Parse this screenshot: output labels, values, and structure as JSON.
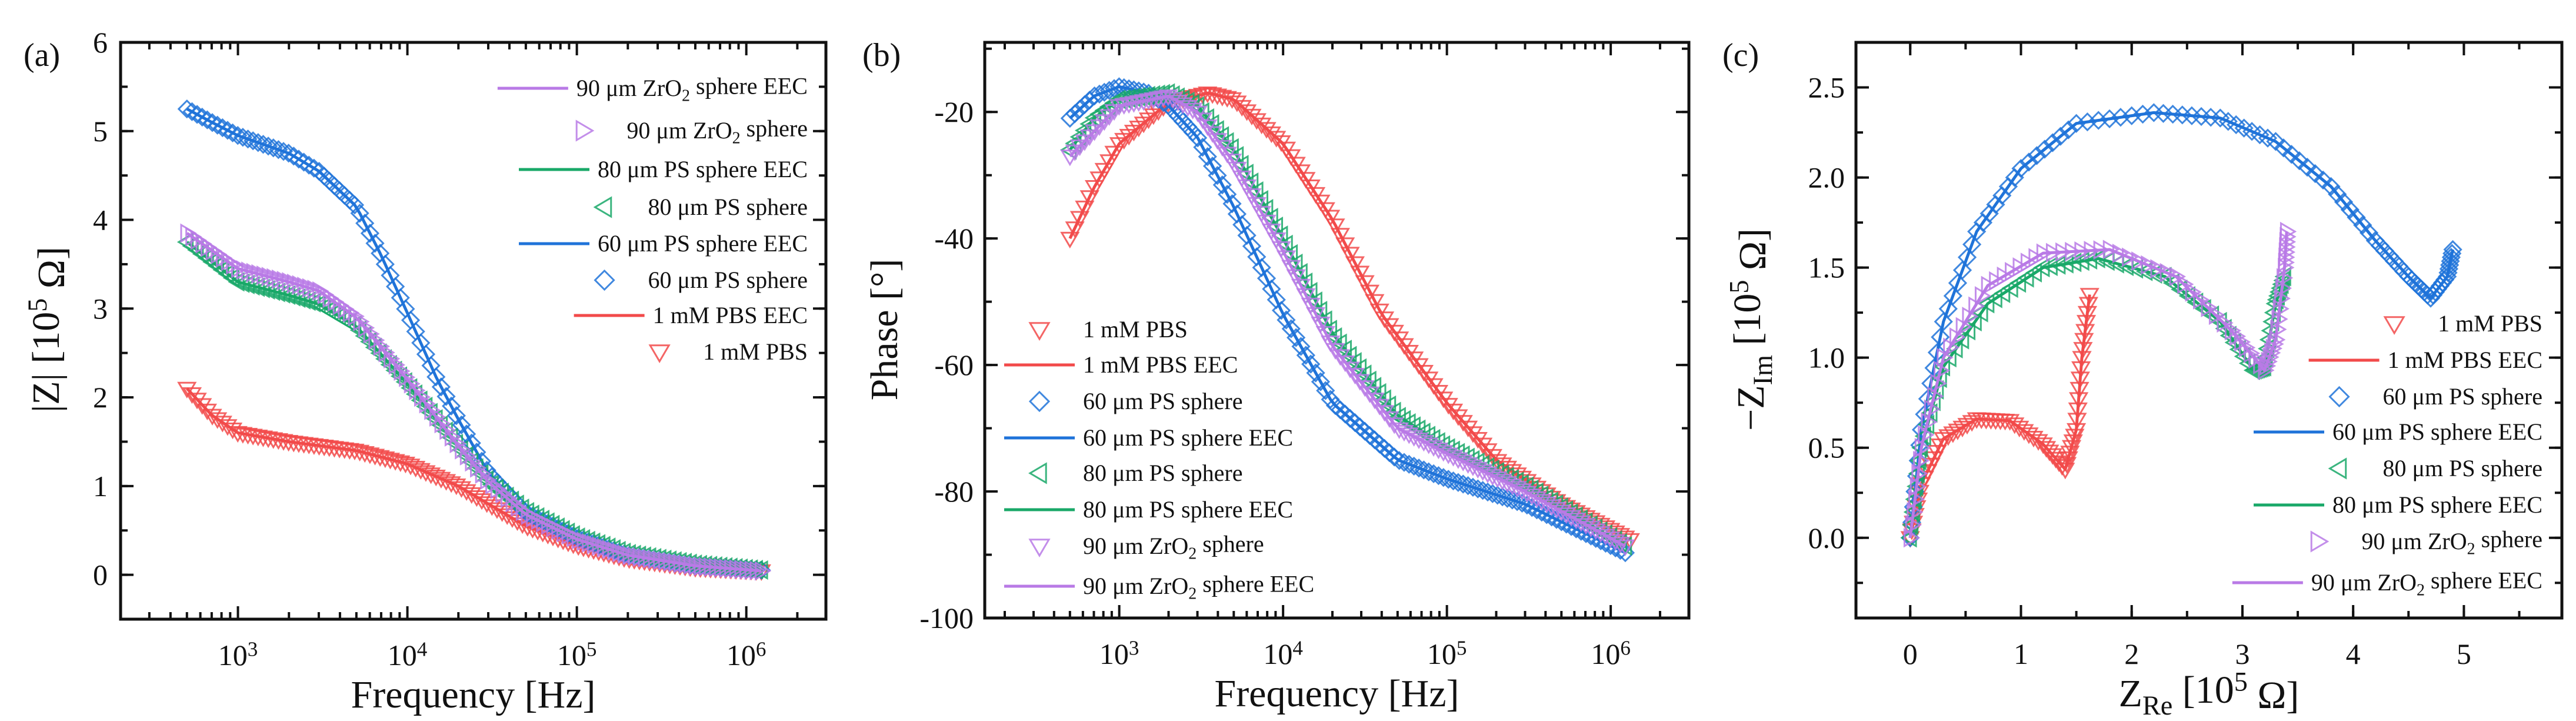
{
  "colors": {
    "pbs": "#f24a4a",
    "ps60": "#1f73d9",
    "ps80": "#19a868",
    "zro90": "#b97ae6"
  },
  "chart_data": [
    {
      "id": "a",
      "type": "line",
      "panel_label": "(a)",
      "xscale": "log",
      "xlim": [
        203,
        2950000
      ],
      "ylim": [
        -0.5,
        6
      ],
      "xlabel": [
        {
          "t": "Frequency [Hz]"
        }
      ],
      "ylabel": [
        {
          "t": "|Z| [10"
        },
        {
          "t": "5",
          "sup": true
        },
        {
          "t": " Ω]"
        }
      ],
      "xticks": [
        {
          "v": 1000,
          "base": "10",
          "exp": "3"
        },
        {
          "v": 10000,
          "base": "10",
          "exp": "4"
        },
        {
          "v": 100000,
          "base": "10",
          "exp": "5"
        },
        {
          "v": 1000000,
          "base": "10",
          "exp": "6"
        }
      ],
      "yticks": [
        {
          "v": 0,
          "label": "0"
        },
        {
          "v": 1,
          "label": "1"
        },
        {
          "v": 2,
          "label": "2"
        },
        {
          "v": 3,
          "label": "3"
        },
        {
          "v": 4,
          "label": "4"
        },
        {
          "v": 5,
          "label": "5"
        },
        {
          "v": 6,
          "label": "6"
        }
      ],
      "legend_placement": "top-right",
      "legend": [
        {
          "series": "zro90",
          "kind": "line",
          "label": [
            {
              "t": "90 μm ZrO"
            },
            {
              "t": "2",
              "sub": true
            },
            {
              "t": " sphere EEC"
            }
          ]
        },
        {
          "series": "zro90",
          "kind": "marker",
          "marker": "tri-right",
          "label": [
            {
              "t": "90 μm ZrO"
            },
            {
              "t": "2",
              "sub": true
            },
            {
              "t": " sphere"
            }
          ]
        },
        {
          "series": "ps80",
          "kind": "line",
          "label": [
            {
              "t": "80 μm PS sphere EEC"
            }
          ]
        },
        {
          "series": "ps80",
          "kind": "marker",
          "marker": "tri-left",
          "label": [
            {
              "t": "80 μm PS sphere"
            }
          ]
        },
        {
          "series": "ps60",
          "kind": "line",
          "label": [
            {
              "t": "60 μm PS sphere EEC"
            }
          ]
        },
        {
          "series": "ps60",
          "kind": "marker",
          "marker": "diamond",
          "label": [
            {
              "t": "60 μm PS sphere"
            }
          ]
        },
        {
          "series": "pbs",
          "kind": "line",
          "label": [
            {
              "t": "1 mM PBS EEC"
            }
          ]
        },
        {
          "series": "pbs",
          "kind": "marker",
          "marker": "tri-down",
          "label": [
            {
              "t": "1 mM PBS"
            }
          ]
        }
      ],
      "series": [
        {
          "key": "pbs",
          "marker": "tri-down",
          "x": [
            500,
            700,
            1000,
            2000,
            5000,
            10000,
            20000,
            30000,
            50000,
            100000,
            200000,
            500000,
            1300000
          ],
          "y": [
            2.1,
            1.8,
            1.6,
            1.5,
            1.4,
            1.25,
            1.0,
            0.8,
            0.55,
            0.33,
            0.18,
            0.08,
            0.04
          ]
        },
        {
          "key": "ps60",
          "marker": "diamond",
          "x": [
            500,
            700,
            1000,
            2000,
            3000,
            5000,
            7000,
            10000,
            15000,
            20000,
            30000,
            50000,
            100000,
            200000,
            500000,
            1300000
          ],
          "y": [
            5.25,
            5.1,
            4.95,
            4.75,
            4.55,
            4.15,
            3.6,
            2.95,
            2.2,
            1.75,
            1.15,
            0.7,
            0.42,
            0.22,
            0.1,
            0.05
          ]
        },
        {
          "key": "ps80",
          "marker": "tri-left",
          "x": [
            500,
            1000,
            2000,
            3000,
            5000,
            10000,
            20000,
            30000,
            50000,
            100000,
            200000,
            500000,
            1300000
          ],
          "y": [
            3.75,
            3.3,
            3.15,
            3.05,
            2.8,
            2.15,
            1.45,
            1.05,
            0.72,
            0.43,
            0.24,
            0.12,
            0.05
          ]
        },
        {
          "key": "zro90",
          "marker": "tri-right",
          "x": [
            500,
            1000,
            2000,
            3000,
            5000,
            10000,
            20000,
            30000,
            50000,
            100000,
            200000,
            500000,
            1300000
          ],
          "y": [
            3.85,
            3.45,
            3.3,
            3.2,
            2.9,
            2.2,
            1.45,
            1.05,
            0.68,
            0.4,
            0.22,
            0.1,
            0.04
          ]
        }
      ]
    },
    {
      "id": "b",
      "type": "line",
      "panel_label": "(b)",
      "xscale": "log",
      "xlim": [
        151,
        3000000
      ],
      "ylim": [
        -100,
        -9
      ],
      "xlabel": [
        {
          "t": "Frequency [Hz]"
        }
      ],
      "ylabel": [
        {
          "t": "Phase [°]"
        }
      ],
      "xticks": [
        {
          "v": 1000,
          "base": "10",
          "exp": "3"
        },
        {
          "v": 10000,
          "base": "10",
          "exp": "4"
        },
        {
          "v": 100000,
          "base": "10",
          "exp": "5"
        },
        {
          "v": 1000000,
          "base": "10",
          "exp": "6"
        }
      ],
      "yticks": [
        {
          "v": -20,
          "label": "-20"
        },
        {
          "v": -40,
          "label": "-40"
        },
        {
          "v": -60,
          "label": "-60"
        },
        {
          "v": -80,
          "label": "-80"
        },
        {
          "v": -100,
          "label": "-100"
        }
      ],
      "legend_placement": "bottom-left",
      "legend": [
        {
          "series": "pbs",
          "kind": "marker",
          "marker": "tri-down",
          "label": [
            {
              "t": "1 mM PBS"
            }
          ]
        },
        {
          "series": "pbs",
          "kind": "line",
          "label": [
            {
              "t": "1 mM PBS EEC"
            }
          ]
        },
        {
          "series": "ps60",
          "kind": "marker",
          "marker": "diamond",
          "label": [
            {
              "t": "60 μm PS sphere"
            }
          ]
        },
        {
          "series": "ps60",
          "kind": "line",
          "label": [
            {
              "t": "60 μm PS sphere EEC"
            }
          ]
        },
        {
          "series": "ps80",
          "kind": "marker",
          "marker": "tri-left",
          "label": [
            {
              "t": "80 μm PS sphere"
            }
          ]
        },
        {
          "series": "ps80",
          "kind": "line",
          "label": [
            {
              "t": "80 μm PS sphere EEC"
            }
          ]
        },
        {
          "series": "zro90",
          "kind": "marker",
          "marker": "tri-down",
          "label": [
            {
              "t": "90 μm ZrO"
            },
            {
              "t": "2",
              "sub": true
            },
            {
              "t": " sphere"
            }
          ]
        },
        {
          "series": "zro90",
          "kind": "line",
          "label": [
            {
              "t": "90 μm ZrO"
            },
            {
              "t": "2",
              "sub": true
            },
            {
              "t": " sphere EEC"
            }
          ]
        }
      ],
      "series": [
        {
          "key": "pbs",
          "marker": "tri-down",
          "x": [
            500,
            700,
            1000,
            2000,
            3500,
            5000,
            10000,
            20000,
            40000,
            100000,
            200000,
            500000,
            1400000
          ],
          "y": [
            -40,
            -32,
            -25,
            -18.5,
            -17,
            -18,
            -25,
            -37,
            -52,
            -66,
            -75,
            -82,
            -88
          ]
        },
        {
          "key": "ps60",
          "marker": "diamond",
          "x": [
            500,
            700,
            1000,
            1500,
            2000,
            3000,
            5000,
            10000,
            20000,
            50000,
            100000,
            300000,
            1300000
          ],
          "y": [
            -21,
            -17.5,
            -16,
            -17,
            -19,
            -24,
            -35,
            -52,
            -66,
            -75,
            -78,
            -82,
            -90
          ]
        },
        {
          "key": "ps80",
          "marker": "tri-left",
          "x": [
            500,
            700,
            1000,
            2000,
            3000,
            5000,
            10000,
            20000,
            50000,
            100000,
            300000,
            1300000
          ],
          "y": [
            -26,
            -21,
            -18,
            -17,
            -19,
            -26,
            -40,
            -55,
            -68,
            -73,
            -79,
            -89
          ]
        },
        {
          "key": "zro90",
          "marker": "tri-down",
          "x": [
            500,
            1000,
            2000,
            3000,
            5000,
            10000,
            20000,
            50000,
            100000,
            300000,
            1300000
          ],
          "y": [
            -27,
            -19,
            -17.5,
            -20,
            -28,
            -42,
            -57,
            -70,
            -74,
            -80,
            -89
          ]
        }
      ]
    },
    {
      "id": "c",
      "type": "scatter",
      "panel_label": "(c)",
      "xscale": "linear",
      "xlim": [
        -0.49,
        5.885
      ],
      "ylim": [
        -0.445,
        2.75
      ],
      "xlabel": [
        {
          "t": "Z"
        },
        {
          "t": "Re",
          "sub": true
        },
        {
          "t": " [10"
        },
        {
          "t": "5",
          "sup": true
        },
        {
          "t": " Ω]"
        }
      ],
      "ylabel": [
        {
          "t": "−Z"
        },
        {
          "t": "Im",
          "sub": true
        },
        {
          "t": " [10"
        },
        {
          "t": "5",
          "sup": true
        },
        {
          "t": " Ω]"
        }
      ],
      "xticks": [
        {
          "v": 0,
          "label": "0"
        },
        {
          "v": 1,
          "label": "1"
        },
        {
          "v": 2,
          "label": "2"
        },
        {
          "v": 3,
          "label": "3"
        },
        {
          "v": 4,
          "label": "4"
        },
        {
          "v": 5,
          "label": "5"
        }
      ],
      "yticks": [
        {
          "v": 0,
          "label": "0.0"
        },
        {
          "v": 0.5,
          "label": "0.5"
        },
        {
          "v": 1,
          "label": "1.0"
        },
        {
          "v": 1.5,
          "label": "1.5"
        },
        {
          "v": 2,
          "label": "2.0"
        },
        {
          "v": 2.5,
          "label": "2.5"
        }
      ],
      "legend_placement": "bottom-right",
      "legend": [
        {
          "series": "pbs",
          "kind": "marker",
          "marker": "tri-down",
          "label": [
            {
              "t": "1 mM PBS"
            }
          ]
        },
        {
          "series": "pbs",
          "kind": "line",
          "label": [
            {
              "t": "1 mM PBS EEC"
            }
          ]
        },
        {
          "series": "ps60",
          "kind": "marker",
          "marker": "diamond",
          "label": [
            {
              "t": "60 μm PS sphere"
            }
          ]
        },
        {
          "series": "ps60",
          "kind": "line",
          "label": [
            {
              "t": "60 μm PS sphere EEC"
            }
          ]
        },
        {
          "series": "ps80",
          "kind": "marker",
          "marker": "tri-left",
          "label": [
            {
              "t": "80 μm PS sphere"
            }
          ]
        },
        {
          "series": "ps80",
          "kind": "line",
          "label": [
            {
              "t": "80 μm PS sphere EEC"
            }
          ]
        },
        {
          "series": "zro90",
          "kind": "marker",
          "marker": "tri-right",
          "label": [
            {
              "t": "90 μm ZrO"
            },
            {
              "t": "2",
              "sub": true
            },
            {
              "t": " sphere"
            }
          ]
        },
        {
          "series": "zro90",
          "kind": "line",
          "label": [
            {
              "t": "90 μm ZrO"
            },
            {
              "t": "2",
              "sub": true
            },
            {
              "t": " sphere EEC"
            }
          ]
        }
      ],
      "series": [
        {
          "key": "pbs",
          "marker": "tri-down",
          "x": [
            0,
            0.1,
            0.3,
            0.6,
            0.9,
            1.2,
            1.4,
            1.5,
            1.55,
            1.62
          ],
          "y": [
            0,
            0.3,
            0.55,
            0.66,
            0.65,
            0.52,
            0.38,
            0.6,
            1.0,
            1.35
          ]
        },
        {
          "key": "ps60",
          "marker": "diamond",
          "x": [
            0,
            0.1,
            0.3,
            0.6,
            1.0,
            1.5,
            2.2,
            2.8,
            3.3,
            3.8,
            4.2,
            4.5,
            4.7,
            4.85,
            4.9
          ],
          "y": [
            0,
            0.6,
            1.2,
            1.7,
            2.05,
            2.3,
            2.36,
            2.33,
            2.2,
            1.95,
            1.65,
            1.45,
            1.33,
            1.45,
            1.6
          ]
        },
        {
          "key": "ps80",
          "marker": "tri-left",
          "x": [
            0,
            0.1,
            0.3,
            0.7,
            1.2,
            1.7,
            2.3,
            2.8,
            3.1,
            3.2,
            3.3,
            3.38
          ],
          "y": [
            0,
            0.5,
            0.95,
            1.3,
            1.5,
            1.55,
            1.45,
            1.2,
            0.93,
            0.95,
            1.3,
            1.45
          ]
        },
        {
          "key": "zro90",
          "marker": "tri-right",
          "x": [
            0,
            0.1,
            0.3,
            0.7,
            1.2,
            1.8,
            2.4,
            2.9,
            3.2,
            3.3,
            3.38,
            3.4
          ],
          "y": [
            0,
            0.5,
            1.0,
            1.4,
            1.58,
            1.6,
            1.45,
            1.15,
            0.93,
            1.1,
            1.5,
            1.7
          ]
        }
      ]
    }
  ]
}
